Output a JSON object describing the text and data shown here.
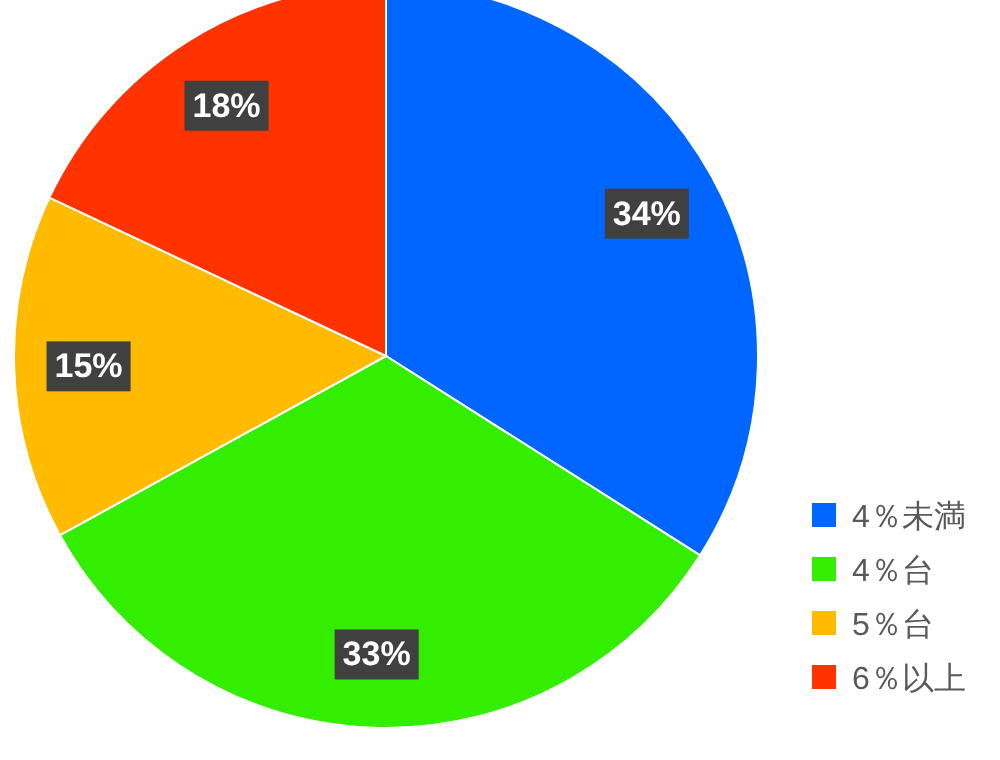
{
  "chart_data": {
    "type": "pie",
    "categories": [
      "4％未満",
      "4％台",
      "5％台",
      "6％以上"
    ],
    "values": [
      34,
      33,
      15,
      18
    ],
    "colors": [
      "#0066ff",
      "#33ee00",
      "#ffbb00",
      "#ff3300"
    ],
    "value_labels": [
      "34%",
      "33%",
      "15%",
      "18%"
    ],
    "legend": "bottom right"
  }
}
